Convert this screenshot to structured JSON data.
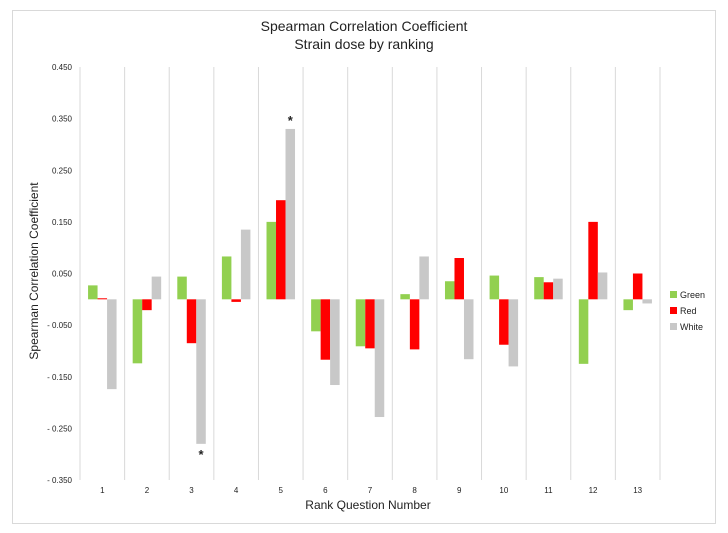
{
  "chart_data": {
    "type": "bar",
    "title": "Spearman Correlation Coefficient",
    "subtitle": "Strain dose by ranking",
    "xlabel": "Rank Question Number",
    "ylabel": "Spearman Correlation Coefficient",
    "ylim": [
      -0.35,
      0.45
    ],
    "yticks": [
      0.45,
      0.35,
      0.25,
      0.15,
      0.05,
      -0.05,
      -0.15,
      -0.25,
      -0.35
    ],
    "ytick_labels": [
      "0.450",
      "0.350",
      "0.250",
      "0.150",
      "0.050",
      "- 0.050",
      "- 0.150",
      "- 0.250",
      "- 0.350"
    ],
    "categories": [
      "1",
      "2",
      "3",
      "4",
      "5",
      "6",
      "7",
      "8",
      "9",
      "10",
      "11",
      "12",
      "13"
    ],
    "series": [
      {
        "name": "Green",
        "color": "#92d050",
        "values": [
          0.027,
          -0.124,
          0.044,
          0.083,
          0.15,
          -0.062,
          -0.091,
          0.01,
          0.035,
          0.046,
          0.043,
          -0.125,
          -0.021
        ]
      },
      {
        "name": "Red",
        "color": "#ff0000",
        "values": [
          0.002,
          -0.021,
          -0.085,
          -0.005,
          0.192,
          -0.117,
          -0.095,
          -0.097,
          0.08,
          -0.088,
          0.033,
          0.15,
          0.05
        ]
      },
      {
        "name": "White",
        "color": "#c8c8c8",
        "values": [
          -0.174,
          0.044,
          -0.28,
          0.135,
          0.33,
          -0.166,
          -0.228,
          0.083,
          -0.116,
          -0.13,
          0.04,
          0.052,
          -0.008
        ]
      }
    ],
    "annotations": [
      {
        "text": "*",
        "category": "5",
        "series": "White"
      },
      {
        "text": "*",
        "category": "3",
        "series": "White"
      }
    ],
    "grid": "vertical separators between categories",
    "legend_position": "right"
  }
}
